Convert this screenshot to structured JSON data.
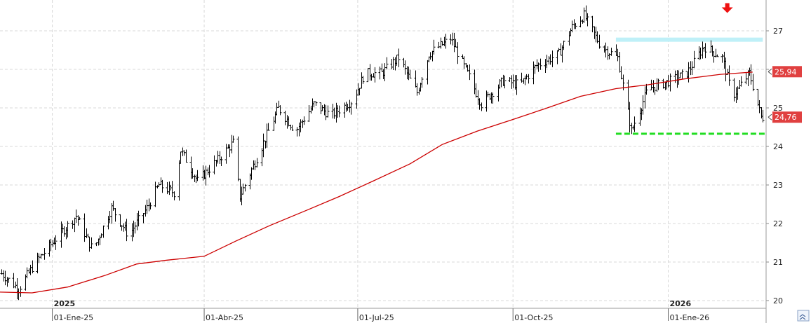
{
  "chart_data": {
    "type": "bar",
    "subtype": "ohlc",
    "y_ticks": [
      "20",
      "21",
      "22",
      "23",
      "24",
      "25",
      "26",
      "27"
    ],
    "ylim": [
      19.8,
      27.8
    ],
    "xlim": [
      "2024-12-01",
      "2026-02-28"
    ],
    "x_ticks": [
      {
        "date": "2025-01-01",
        "label": "01-Ene-25"
      },
      {
        "date": "2025-04-01",
        "label": "01-Abr-25"
      },
      {
        "date": "2025-07-01",
        "label": "01-Jul-25"
      },
      {
        "date": "2025-10-01",
        "label": "01-Oct-25"
      },
      {
        "date": "2026-01-01",
        "label": "01-Ene-26"
      }
    ],
    "year_labels": [
      {
        "date": "2025-01-01",
        "label": "2025"
      },
      {
        "date": "2026-01-01",
        "label": "2026"
      }
    ],
    "price_tags": [
      {
        "value": 25.94,
        "label": "25,94",
        "color": "#e04040"
      },
      {
        "value": 24.76,
        "label": "24,76",
        "color": "#e04040"
      }
    ],
    "series": [
      {
        "kind": "moving_average",
        "color": "#cc0000",
        "points": [
          [
            "2024-12-01",
            20.22
          ],
          [
            "2024-12-20",
            20.2
          ],
          [
            "2025-01-10",
            20.35
          ],
          [
            "2025-02-01",
            20.65
          ],
          [
            "2025-02-20",
            20.95
          ],
          [
            "2025-03-10",
            21.05
          ],
          [
            "2025-04-01",
            21.15
          ],
          [
            "2025-04-20",
            21.55
          ],
          [
            "2025-05-10",
            21.95
          ],
          [
            "2025-06-01",
            22.35
          ],
          [
            "2025-06-20",
            22.7
          ],
          [
            "2025-07-10",
            23.1
          ],
          [
            "2025-08-01",
            23.55
          ],
          [
            "2025-08-20",
            24.05
          ],
          [
            "2025-09-10",
            24.4
          ],
          [
            "2025-10-01",
            24.7
          ],
          [
            "2025-10-20",
            24.98
          ],
          [
            "2025-11-10",
            25.3
          ],
          [
            "2025-12-01",
            25.5
          ],
          [
            "2025-12-20",
            25.6
          ],
          [
            "2026-01-10",
            25.75
          ],
          [
            "2026-02-01",
            25.87
          ],
          [
            "2026-02-20",
            25.93
          ]
        ]
      }
    ],
    "ohlc_anchors": [
      [
        "2024-12-02",
        20.7
      ],
      [
        "2024-12-12",
        20.3
      ],
      [
        "2024-12-22",
        21.0
      ],
      [
        "2025-01-05",
        21.7
      ],
      [
        "2025-01-15",
        22.2
      ],
      [
        "2025-01-25",
        21.3
      ],
      [
        "2025-02-05",
        22.4
      ],
      [
        "2025-02-15",
        21.7
      ],
      [
        "2025-02-26",
        22.4
      ],
      [
        "2025-03-05",
        23.0
      ],
      [
        "2025-03-14",
        22.8
      ],
      [
        "2025-03-18",
        23.9
      ],
      [
        "2025-03-28",
        23.1
      ],
      [
        "2025-04-08",
        23.6
      ],
      [
        "2025-04-18",
        24.1
      ],
      [
        "2025-04-22",
        22.7
      ],
      [
        "2025-05-05",
        24.0
      ],
      [
        "2025-05-15",
        25.0
      ],
      [
        "2025-05-25",
        24.4
      ],
      [
        "2025-06-05",
        25.1
      ],
      [
        "2025-06-15",
        24.8
      ],
      [
        "2025-06-28",
        25.2
      ],
      [
        "2025-07-05",
        25.9
      ],
      [
        "2025-07-15",
        25.9
      ],
      [
        "2025-07-25",
        26.3
      ],
      [
        "2025-08-05",
        25.4
      ],
      [
        "2025-08-12",
        26.4
      ],
      [
        "2025-08-25",
        26.8
      ],
      [
        "2025-09-05",
        25.8
      ],
      [
        "2025-09-12",
        25.1
      ],
      [
        "2025-09-25",
        25.7
      ],
      [
        "2025-10-05",
        25.6
      ],
      [
        "2025-10-15",
        26.1
      ],
      [
        "2025-10-28",
        26.4
      ],
      [
        "2025-11-05",
        27.1
      ],
      [
        "2025-11-12",
        27.4
      ],
      [
        "2025-11-22",
        26.6
      ],
      [
        "2025-12-02",
        26.3
      ],
      [
        "2025-12-10",
        24.4
      ],
      [
        "2025-12-20",
        25.5
      ],
      [
        "2026-01-02",
        25.7
      ],
      [
        "2026-01-12",
        25.9
      ],
      [
        "2026-01-22",
        26.6
      ],
      [
        "2026-02-02",
        26.3
      ],
      [
        "2026-02-08",
        25.3
      ],
      [
        "2026-02-18",
        25.9
      ],
      [
        "2026-02-25",
        24.76
      ]
    ],
    "annotations": [
      {
        "kind": "resistance_band",
        "color": "#bff0f8",
        "from": "2025-12-01",
        "to": "2026-02-26",
        "y": 26.77
      },
      {
        "kind": "support_line",
        "color": "#22dd22",
        "style": "dashed",
        "from": "2025-12-01",
        "to": "2026-02-28",
        "y": 24.33
      },
      {
        "kind": "arrow_down",
        "color": "#ee1111",
        "date": "2026-02-05",
        "y": 27.5
      }
    ]
  }
}
